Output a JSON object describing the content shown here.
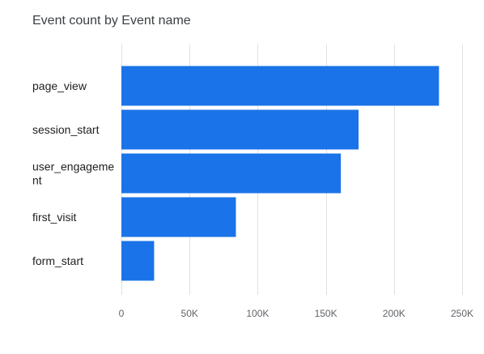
{
  "chart_data": {
    "type": "bar",
    "orientation": "horizontal",
    "title": "Event count by Event name",
    "categories": [
      "page_view",
      "session_start",
      "user_engagement",
      "first_visit",
      "form_start"
    ],
    "category_label_lines": [
      [
        "page_view"
      ],
      [
        "session_start"
      ],
      [
        "user_engageme",
        "nt"
      ],
      [
        "first_visit"
      ],
      [
        "form_start"
      ]
    ],
    "series": [
      {
        "values": [
          233000,
          174000,
          161000,
          84000,
          24000
        ]
      }
    ],
    "xlim": [
      0,
      250000
    ],
    "x_ticks": [
      0,
      50000,
      100000,
      150000,
      200000,
      250000
    ],
    "x_tick_labels": [
      "0",
      "50K",
      "100K",
      "150K",
      "200K",
      "250K"
    ],
    "grid": true,
    "legend": "none",
    "xlabel": "",
    "ylabel": ""
  },
  "colors": {
    "bar": "#1a73e8",
    "grid": "#e0e0e0",
    "title": "#3c4043",
    "category_text": "#202124",
    "tick_text": "#5f6368"
  }
}
